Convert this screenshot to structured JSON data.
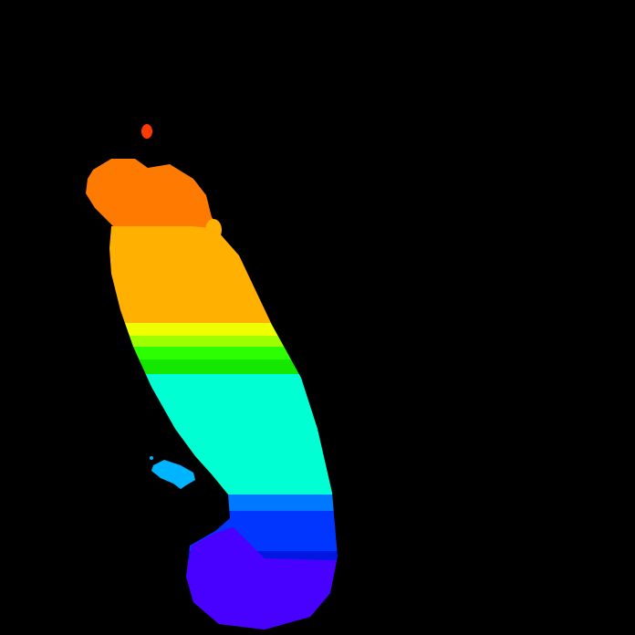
{
  "canvas": {
    "background": "#000000"
  },
  "regions": {
    "top_speck": {
      "color": "#ff3a00"
    },
    "head": {
      "color": "#ff7a00"
    },
    "upper_body": {
      "color": "#ffb000"
    },
    "yellow_band": {
      "color": "#f0ff00"
    },
    "lime_band": {
      "color": "#9dff00"
    },
    "green_band": {
      "color": "#2dff00"
    },
    "green_band_dark": {
      "color": "#14e800"
    },
    "cyan_body": {
      "color": "#00ffd2"
    },
    "light_blue_band": {
      "color": "#0078ff"
    },
    "blue_band": {
      "color": "#0036ff"
    },
    "dark_blue_line": {
      "color": "#0018e0"
    },
    "violet_base": {
      "color": "#4800ff"
    },
    "isolated_blob": {
      "color": "#00b4ff"
    }
  }
}
